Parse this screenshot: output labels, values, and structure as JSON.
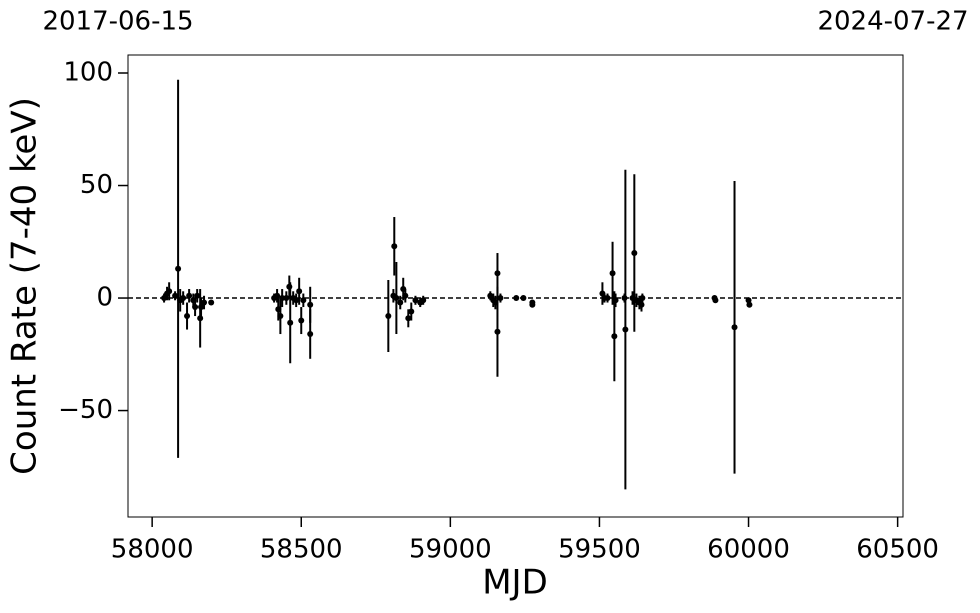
{
  "chart_data": {
    "type": "errorbar-scatter",
    "xlabel": "MJD",
    "ylabel": "Count Rate (7-40 keV)",
    "xlim": [
      57919,
      60518
    ],
    "ylim": [
      -97.3,
      108
    ],
    "xticks": [
      58000,
      58500,
      59000,
      59500,
      60000,
      60500
    ],
    "yticks": [
      {
        "value": -50,
        "label": "−50"
      },
      0,
      50,
      100
    ],
    "x2ticks": [
      {
        "value": 57919,
        "label": "2017-06-15"
      },
      {
        "value": 60518,
        "label": "2024-07-27"
      }
    ],
    "hline": 0,
    "color": "#000000",
    "x": [
      58040,
      58050,
      58057,
      58077,
      58087,
      58094,
      58104,
      58117,
      58124,
      58138,
      58144,
      58151,
      58161,
      58164,
      58174,
      58198,
      58409,
      58419,
      58423,
      58430,
      58436,
      58450,
      58460,
      58463,
      58473,
      58483,
      58493,
      58500,
      58507,
      58530,
      58530,
      58792,
      58809,
      58812,
      58819,
      58832,
      58842,
      58849,
      58859,
      58869,
      58883,
      58899,
      58909,
      59134,
      59144,
      59151,
      59158,
      59158,
      59168,
      59221,
      59245,
      59275,
      59275,
      59510,
      59517,
      59527,
      59544,
      59550,
      59554,
      59584,
      59587,
      59611,
      59617,
      59624,
      59634,
      59641,
      59644,
      59886,
      59889,
      59953,
      60000,
      60003
    ],
    "values": [
      0,
      2,
      3,
      1,
      13,
      -1,
      0,
      -8,
      1,
      -1,
      -4,
      1,
      -9,
      -4,
      -2,
      -2,
      0,
      1,
      -5,
      -8,
      0,
      0,
      5,
      -11,
      0,
      -1,
      3,
      -10,
      -1,
      -16,
      -3,
      -8,
      1,
      23,
      0,
      -2,
      4,
      1,
      -9,
      -6,
      -1,
      -2,
      -1,
      1,
      -1,
      -2,
      -15,
      11,
      0,
      0,
      0,
      -2,
      -3,
      2,
      0,
      0,
      11,
      -17,
      -1,
      0,
      -14,
      0,
      20,
      -1,
      -2,
      -3,
      0,
      0,
      -1,
      -13,
      -1,
      -3
    ],
    "errors": [
      2,
      3,
      4,
      2,
      84,
      5,
      3,
      6,
      3,
      3,
      4,
      3,
      13,
      4,
      3,
      1,
      2,
      3,
      5,
      8,
      4,
      3,
      5,
      18,
      3,
      3,
      6,
      6,
      3,
      11,
      8,
      16,
      3,
      13,
      16,
      3,
      5,
      3,
      4,
      4,
      2,
      2,
      2,
      2,
      3,
      3,
      20,
      9,
      2,
      1,
      1,
      1,
      1,
      5,
      2,
      2,
      14,
      20,
      3,
      2,
      71,
      3,
      35,
      3,
      3,
      3,
      2,
      1,
      1,
      65,
      1,
      1
    ]
  }
}
